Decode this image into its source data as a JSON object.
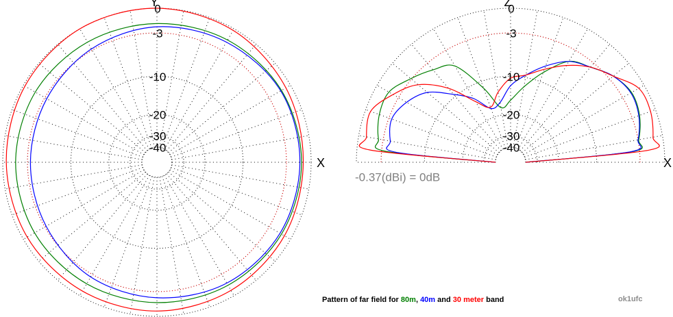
{
  "chart_data": [
    {
      "type": "polar",
      "theta_axis_label": "X",
      "top_axis_label": "Y",
      "theta_range": [
        0,
        360
      ],
      "radial_scale": "arrl-log",
      "rticks": [
        0,
        -3,
        -10,
        -20,
        -30,
        -40
      ],
      "spoke_step": 10,
      "reference_ring": -3,
      "reference_color": "#ff0000",
      "angles": [
        0,
        30,
        60,
        90,
        120,
        150,
        180,
        210,
        240,
        270,
        300,
        330
      ],
      "series": [
        {
          "name": "80m",
          "color": "#007f00",
          "values": [
            -1.1,
            -1.2,
            -1.5,
            -1.8,
            -1.8,
            -1.6,
            -1.5,
            -1.5,
            -1.6,
            -1.6,
            -1.4,
            -1.2
          ]
        },
        {
          "name": "40m",
          "color": "#0000ff",
          "values": [
            -1.3,
            -1.3,
            -1.8,
            -2.2,
            -2.8,
            -3.3,
            -3.4,
            -3.2,
            -2.6,
            -2.2,
            -1.7,
            -1.4
          ]
        },
        {
          "name": "30 meter",
          "color": "#ff0000",
          "values": [
            -0.9,
            -0.6,
            -0.2,
            0,
            0,
            -0.2,
            -0.4,
            -0.5,
            -0.6,
            -0.6,
            -0.7,
            -0.8
          ]
        }
      ]
    },
    {
      "type": "polar",
      "theta_axis_label": "X",
      "top_axis_label": "Z",
      "theta_range": [
        0,
        180
      ],
      "radial_scale": "arrl-log",
      "rticks": [
        0,
        -3,
        -10,
        -20,
        -30,
        -40
      ],
      "spoke_step": 10,
      "reference_ring": -3,
      "reference_color": "#ff0000",
      "annotation": "-0.37(dBi) = 0dB",
      "angles": [
        0,
        5,
        10,
        20,
        30,
        40,
        50,
        60,
        70,
        80,
        90,
        100,
        110,
        120,
        130,
        140,
        150,
        160,
        170,
        175,
        180
      ],
      "series": [
        {
          "color": "#007f00",
          "values": [
            -40,
            -4.0,
            -2.9,
            -2.0,
            -1.7,
            -2.4,
            -3.7,
            -4.8,
            -8.2,
            -12,
            -15.6,
            -17.5,
            -11.5,
            -5.6,
            -4.2,
            -2.9,
            -1.6,
            -1.7,
            -2.4,
            -3.6,
            -40
          ]
        },
        {
          "color": "#0000ff",
          "values": [
            -40,
            -4.2,
            -3.0,
            -2.1,
            -1.8,
            -2.4,
            -3.7,
            -4.8,
            -7.0,
            -9.5,
            -12,
            -16,
            -17,
            -12.7,
            -9.5,
            -6.0,
            -4.3,
            -3.4,
            -4.0,
            -5.0,
            -40
          ]
        },
        {
          "color": "#ff0000",
          "values": [
            -40,
            -1.8,
            -1.1,
            -0.6,
            -0.7,
            -2.4,
            -3.7,
            -5.5,
            -7.6,
            -9.5,
            -10.4,
            -13.2,
            -16.6,
            -13.5,
            -8,
            -4.2,
            -2.2,
            -0.6,
            -0.9,
            -1.5,
            -40
          ]
        }
      ]
    }
  ],
  "caption": {
    "prefix": "Pattern of far field for",
    "sep": ",",
    "and": "and",
    "suffix": "band"
  },
  "credit": "ok1ufc"
}
